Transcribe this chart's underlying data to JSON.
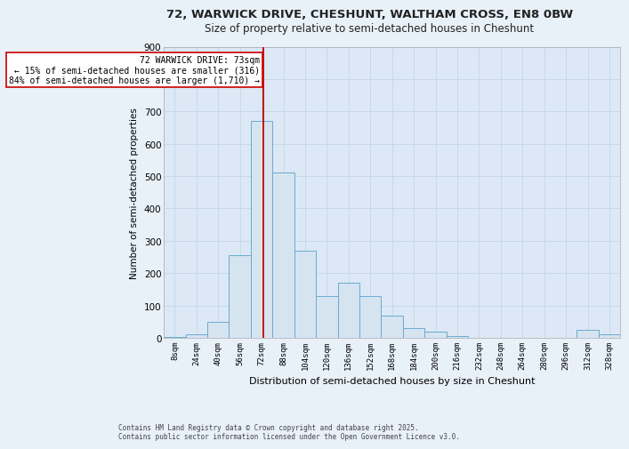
{
  "title_line1": "72, WARWICK DRIVE, CHESHUNT, WALTHAM CROSS, EN8 0BW",
  "title_line2": "Size of property relative to semi-detached houses in Cheshunt",
  "xlabel": "Distribution of semi-detached houses by size in Cheshunt",
  "ylabel": "Number of semi-detached properties",
  "bin_labels": [
    "8sqm",
    "24sqm",
    "40sqm",
    "56sqm",
    "72sqm",
    "88sqm",
    "104sqm",
    "120sqm",
    "136sqm",
    "152sqm",
    "168sqm",
    "184sqm",
    "200sqm",
    "216sqm",
    "232sqm",
    "248sqm",
    "264sqm",
    "280sqm",
    "296sqm",
    "312sqm",
    "328sqm"
  ],
  "bin_values": [
    3,
    10,
    50,
    255,
    670,
    510,
    270,
    130,
    170,
    130,
    70,
    30,
    20,
    5,
    0,
    0,
    0,
    0,
    0,
    25,
    10
  ],
  "bar_color": "#d6e4f0",
  "bar_edge_color": "#6aabd2",
  "vline_color": "#cc0000",
  "annotation_box_color": "#ffffff",
  "annotation_box_edge": "#cc0000",
  "annotation_line1": "72 WARWICK DRIVE: 73sqm",
  "annotation_line2": "← 15% of semi-detached houses are smaller (316)",
  "annotation_line3": "84% of semi-detached houses are larger (1,710) →",
  "ylim": [
    0,
    900
  ],
  "yticks": [
    0,
    100,
    200,
    300,
    400,
    500,
    600,
    700,
    800,
    900
  ],
  "background_color": "#e8f0f8",
  "plot_bg_color": "#dce8f5",
  "grid_color": "#c8d8e8",
  "footnote": "Contains HM Land Registry data © Crown copyright and database right 2025.\nContains public sector information licensed under the Open Government Licence v3.0."
}
